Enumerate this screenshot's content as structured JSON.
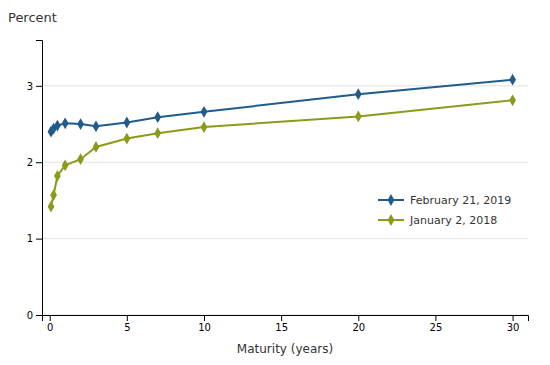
{
  "chart_data": {
    "type": "line",
    "title": "Percent",
    "x_label": "Maturity (years)",
    "x": [
      0.083,
      0.25,
      0.5,
      1,
      2,
      3,
      5,
      7,
      10,
      20,
      30
    ],
    "series": [
      {
        "name": "February 21, 2019",
        "color": "#1f5c8b",
        "values": [
          2.4,
          2.44,
          2.48,
          2.51,
          2.5,
          2.47,
          2.52,
          2.59,
          2.66,
          2.89,
          3.08
        ]
      },
      {
        "name": "January 2, 2018",
        "color": "#8b9a1a",
        "values": [
          1.42,
          1.57,
          1.82,
          1.96,
          2.04,
          2.2,
          2.31,
          2.38,
          2.46,
          2.6,
          2.81
        ]
      }
    ],
    "xlim": [
      -0.5,
      31
    ],
    "xticks": [
      0,
      5,
      10,
      15,
      20,
      25,
      30
    ],
    "ylim": [
      0,
      3.6
    ],
    "yticks": [
      0,
      1,
      2,
      3
    ],
    "grid": "y",
    "legend": "lower right",
    "marker": "diamond"
  }
}
